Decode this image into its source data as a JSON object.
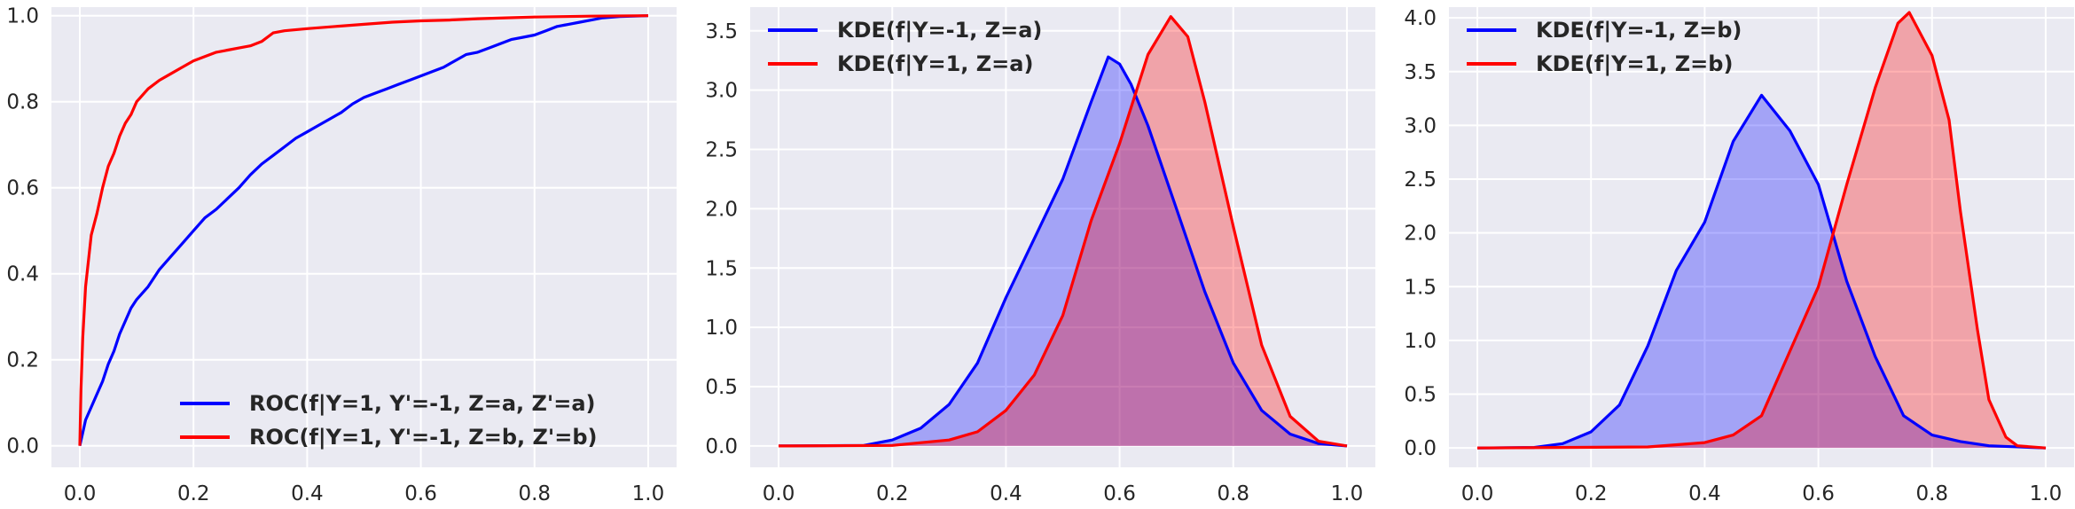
{
  "chart_data": [
    {
      "type": "line",
      "title": "",
      "xlabel": "",
      "ylabel": "",
      "xlim": [
        -0.05,
        1.05
      ],
      "ylim": [
        -0.05,
        1.02
      ],
      "xticks": [
        "0.0",
        "0.2",
        "0.4",
        "0.6",
        "0.8",
        "1.0"
      ],
      "yticks": [
        "0.0",
        "0.2",
        "0.4",
        "0.6",
        "0.8",
        "1.0"
      ],
      "grid": true,
      "legend_position": "bottom-right",
      "series": [
        {
          "name": "ROC(f|Y=1, Y'=-1, Z=a, Z'=a)",
          "color": "#0000ff",
          "fill": false,
          "points": [
            [
              0,
              0
            ],
            [
              0.005,
              0.03
            ],
            [
              0.01,
              0.06
            ],
            [
              0.02,
              0.09
            ],
            [
              0.03,
              0.12
            ],
            [
              0.04,
              0.15
            ],
            [
              0.05,
              0.19
            ],
            [
              0.06,
              0.22
            ],
            [
              0.07,
              0.26
            ],
            [
              0.08,
              0.29
            ],
            [
              0.09,
              0.32
            ],
            [
              0.1,
              0.34
            ],
            [
              0.12,
              0.37
            ],
            [
              0.14,
              0.41
            ],
            [
              0.16,
              0.44
            ],
            [
              0.18,
              0.47
            ],
            [
              0.2,
              0.5
            ],
            [
              0.22,
              0.53
            ],
            [
              0.24,
              0.55
            ],
            [
              0.26,
              0.575
            ],
            [
              0.28,
              0.6
            ],
            [
              0.3,
              0.63
            ],
            [
              0.32,
              0.655
            ],
            [
              0.34,
              0.675
            ],
            [
              0.36,
              0.695
            ],
            [
              0.38,
              0.715
            ],
            [
              0.4,
              0.73
            ],
            [
              0.42,
              0.745
            ],
            [
              0.44,
              0.76
            ],
            [
              0.46,
              0.775
            ],
            [
              0.48,
              0.795
            ],
            [
              0.5,
              0.81
            ],
            [
              0.52,
              0.82
            ],
            [
              0.54,
              0.83
            ],
            [
              0.56,
              0.84
            ],
            [
              0.58,
              0.85
            ],
            [
              0.6,
              0.86
            ],
            [
              0.62,
              0.87
            ],
            [
              0.64,
              0.88
            ],
            [
              0.66,
              0.895
            ],
            [
              0.68,
              0.91
            ],
            [
              0.7,
              0.915
            ],
            [
              0.72,
              0.925
            ],
            [
              0.74,
              0.935
            ],
            [
              0.76,
              0.945
            ],
            [
              0.78,
              0.95
            ],
            [
              0.8,
              0.955
            ],
            [
              0.82,
              0.965
            ],
            [
              0.84,
              0.975
            ],
            [
              0.86,
              0.98
            ],
            [
              0.88,
              0.985
            ],
            [
              0.9,
              0.99
            ],
            [
              0.92,
              0.995
            ],
            [
              0.95,
              0.998
            ],
            [
              1.0,
              1.0
            ]
          ]
        },
        {
          "name": "ROC(f|Y=1, Y'=-1, Z=b, Z'=b)",
          "color": "#ff0000",
          "fill": false,
          "points": [
            [
              0,
              0
            ],
            [
              0.002,
              0.13
            ],
            [
              0.005,
              0.25
            ],
            [
              0.01,
              0.37
            ],
            [
              0.015,
              0.43
            ],
            [
              0.02,
              0.49
            ],
            [
              0.03,
              0.54
            ],
            [
              0.04,
              0.6
            ],
            [
              0.05,
              0.65
            ],
            [
              0.06,
              0.68
            ],
            [
              0.07,
              0.72
            ],
            [
              0.08,
              0.75
            ],
            [
              0.09,
              0.77
            ],
            [
              0.1,
              0.8
            ],
            [
              0.12,
              0.83
            ],
            [
              0.14,
              0.85
            ],
            [
              0.16,
              0.865
            ],
            [
              0.18,
              0.88
            ],
            [
              0.2,
              0.895
            ],
            [
              0.22,
              0.905
            ],
            [
              0.24,
              0.915
            ],
            [
              0.26,
              0.92
            ],
            [
              0.28,
              0.925
            ],
            [
              0.3,
              0.93
            ],
            [
              0.32,
              0.94
            ],
            [
              0.34,
              0.96
            ],
            [
              0.36,
              0.965
            ],
            [
              0.4,
              0.97
            ],
            [
              0.45,
              0.975
            ],
            [
              0.5,
              0.98
            ],
            [
              0.55,
              0.985
            ],
            [
              0.6,
              0.988
            ],
            [
              0.65,
              0.99
            ],
            [
              0.7,
              0.993
            ],
            [
              0.75,
              0.995
            ],
            [
              0.8,
              0.997
            ],
            [
              0.85,
              0.998
            ],
            [
              0.9,
              0.999
            ],
            [
              1.0,
              1.0
            ]
          ]
        }
      ]
    },
    {
      "type": "area",
      "title": "",
      "xlabel": "",
      "ylabel": "",
      "xlim": [
        -0.05,
        1.05
      ],
      "ylim": [
        -0.18,
        3.7
      ],
      "xticks": [
        "0.0",
        "0.2",
        "0.4",
        "0.6",
        "0.8",
        "1.0"
      ],
      "yticks": [
        "0.0",
        "0.5",
        "1.0",
        "1.5",
        "2.0",
        "2.5",
        "3.0",
        "3.5"
      ],
      "grid": true,
      "legend_position": "top-left",
      "series": [
        {
          "name": "KDE(f|Y=-1, Z=a)",
          "color": "#0000ff",
          "fill": true,
          "points": [
            [
              0,
              0
            ],
            [
              0.15,
              0.005
            ],
            [
              0.2,
              0.05
            ],
            [
              0.25,
              0.15
            ],
            [
              0.3,
              0.35
            ],
            [
              0.35,
              0.7
            ],
            [
              0.4,
              1.25
            ],
            [
              0.45,
              1.75
            ],
            [
              0.5,
              2.25
            ],
            [
              0.55,
              2.9
            ],
            [
              0.58,
              3.28
            ],
            [
              0.6,
              3.22
            ],
            [
              0.62,
              3.05
            ],
            [
              0.65,
              2.7
            ],
            [
              0.7,
              2.0
            ],
            [
              0.75,
              1.3
            ],
            [
              0.8,
              0.7
            ],
            [
              0.85,
              0.3
            ],
            [
              0.9,
              0.1
            ],
            [
              0.95,
              0.02
            ],
            [
              1.0,
              0
            ]
          ]
        },
        {
          "name": "KDE(f|Y=1, Z=a)",
          "color": "#ff0000",
          "fill": true,
          "points": [
            [
              0,
              0
            ],
            [
              0.2,
              0.005
            ],
            [
              0.3,
              0.05
            ],
            [
              0.35,
              0.12
            ],
            [
              0.4,
              0.3
            ],
            [
              0.45,
              0.6
            ],
            [
              0.5,
              1.1
            ],
            [
              0.55,
              1.9
            ],
            [
              0.6,
              2.55
            ],
            [
              0.65,
              3.3
            ],
            [
              0.69,
              3.62
            ],
            [
              0.72,
              3.45
            ],
            [
              0.75,
              2.9
            ],
            [
              0.8,
              1.85
            ],
            [
              0.85,
              0.85
            ],
            [
              0.9,
              0.25
            ],
            [
              0.95,
              0.04
            ],
            [
              1.0,
              0
            ]
          ]
        }
      ]
    },
    {
      "type": "area",
      "title": "",
      "xlabel": "",
      "ylabel": "",
      "xlim": [
        -0.05,
        1.05
      ],
      "ylim": [
        -0.18,
        4.1
      ],
      "xticks": [
        "0.0",
        "0.2",
        "0.4",
        "0.6",
        "0.8",
        "1.0"
      ],
      "yticks": [
        "0.0",
        "0.5",
        "1.0",
        "1.5",
        "2.0",
        "2.5",
        "3.0",
        "3.5",
        "4.0"
      ],
      "grid": true,
      "legend_position": "top-left",
      "series": [
        {
          "name": "KDE(f|Y=-1, Z=b)",
          "color": "#0000ff",
          "fill": true,
          "points": [
            [
              0,
              0
            ],
            [
              0.1,
              0.005
            ],
            [
              0.15,
              0.04
            ],
            [
              0.2,
              0.15
            ],
            [
              0.25,
              0.4
            ],
            [
              0.3,
              0.95
            ],
            [
              0.35,
              1.65
            ],
            [
              0.4,
              2.1
            ],
            [
              0.45,
              2.85
            ],
            [
              0.5,
              3.28
            ],
            [
              0.55,
              2.95
            ],
            [
              0.6,
              2.45
            ],
            [
              0.65,
              1.55
            ],
            [
              0.7,
              0.85
            ],
            [
              0.75,
              0.3
            ],
            [
              0.8,
              0.12
            ],
            [
              0.85,
              0.06
            ],
            [
              0.9,
              0.02
            ],
            [
              1.0,
              0
            ]
          ]
        },
        {
          "name": "KDE(f|Y=1, Z=b)",
          "color": "#ff0000",
          "fill": true,
          "points": [
            [
              0,
              0
            ],
            [
              0.3,
              0.01
            ],
            [
              0.4,
              0.05
            ],
            [
              0.45,
              0.12
            ],
            [
              0.5,
              0.3
            ],
            [
              0.55,
              0.9
            ],
            [
              0.6,
              1.5
            ],
            [
              0.65,
              2.45
            ],
            [
              0.7,
              3.35
            ],
            [
              0.74,
              3.95
            ],
            [
              0.76,
              4.05
            ],
            [
              0.8,
              3.65
            ],
            [
              0.83,
              3.05
            ],
            [
              0.85,
              2.2
            ],
            [
              0.88,
              1.1
            ],
            [
              0.9,
              0.45
            ],
            [
              0.93,
              0.1
            ],
            [
              0.95,
              0.02
            ],
            [
              1.0,
              0
            ]
          ]
        }
      ]
    }
  ]
}
